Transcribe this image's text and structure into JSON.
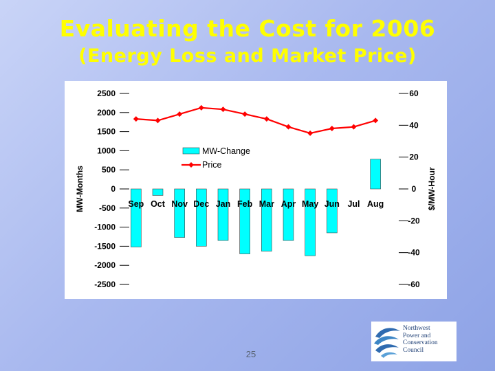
{
  "slide": {
    "title": "Evaluating the Cost for 2006",
    "subtitle": "(Energy Loss and Market Price)",
    "page_number": "25"
  },
  "logo": {
    "lines": [
      "Northwest",
      "Power and",
      "Conservation",
      "Council"
    ]
  },
  "colors": {
    "title": "#ffff00",
    "bar": "#00ffff",
    "line": "#ff0000",
    "background": "#a9b9ef"
  },
  "chart_data": {
    "type": "bar",
    "categories": [
      "Sep",
      "Oct",
      "Nov",
      "Dec",
      "Jan",
      "Feb",
      "Mar",
      "Apr",
      "May",
      "Jun",
      "Jul",
      "Aug"
    ],
    "series": [
      {
        "name": "MW-Change",
        "type": "bar",
        "axis": "left",
        "values": [
          -1520,
          -170,
          -1270,
          -1500,
          -1350,
          -1700,
          -1630,
          -1350,
          -1750,
          -1150,
          0,
          780
        ]
      },
      {
        "name": "Price",
        "type": "line",
        "axis": "right",
        "values": [
          44,
          43,
          47,
          51,
          50,
          47,
          44,
          39,
          35,
          38,
          39,
          43
        ]
      }
    ],
    "y_left": {
      "label": "MW-Months",
      "range": [
        -2500,
        2500
      ],
      "ticks": [
        "2500",
        "2000",
        "1500",
        "1000",
        "500",
        "0",
        "-500",
        "-1000",
        "-1500",
        "-2000",
        "-2500"
      ]
    },
    "y_right": {
      "label": "$/MW-Hour",
      "range": [
        -60,
        60
      ],
      "ticks": [
        "60",
        "40",
        "20",
        "0",
        "-20",
        "-40",
        "-60"
      ]
    },
    "legend": {
      "position": "upper-center",
      "entries": [
        "MW-Change",
        "Price"
      ]
    },
    "grid": false
  }
}
